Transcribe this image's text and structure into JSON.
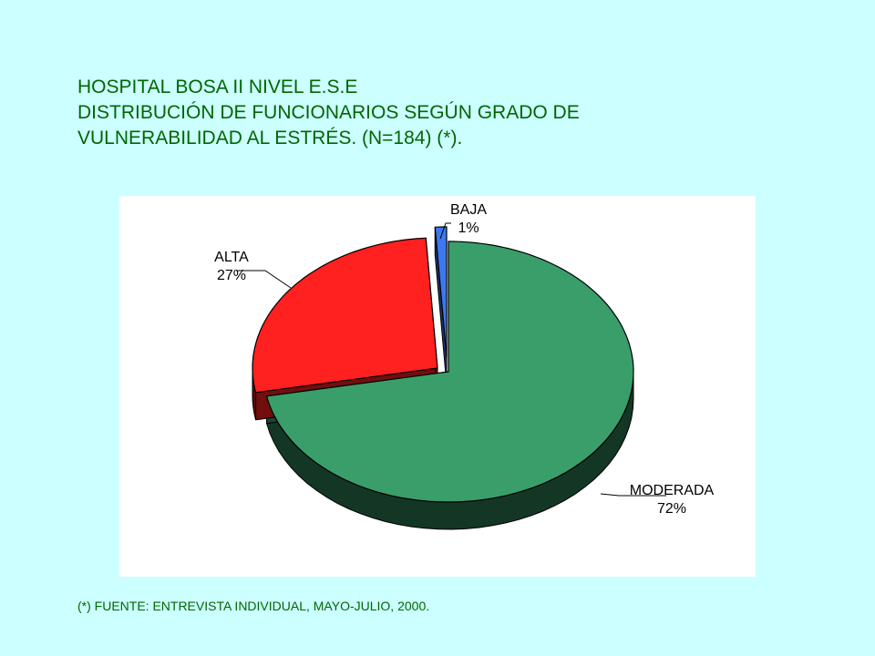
{
  "title": {
    "line1": "HOSPITAL BOSA II NIVEL E.S.E",
    "line2": "DISTRIBUCIÓN DE FUNCIONARIOS SEGÚN GRADO DE",
    "line3": "VULNERABILIDAD AL ESTRÉS.   (N=184) (*)."
  },
  "footnote": "(*) FUENTE: ENTREVISTA INDIVIDUAL, MAYO-JULIO, 2000.",
  "chart_data": {
    "type": "pie",
    "title": "HOSPITAL BOSA II NIVEL E.S.E DISTRIBUCIÓN DE FUNCIONARIOS SEGÚN GRADO DE VULNERABILIDAD AL ESTRÉS. (N=184) (*).",
    "categories": [
      "MODERADA",
      "ALTA",
      "BAJA"
    ],
    "values": [
      72,
      27,
      1
    ],
    "labels": [
      "MODERADA 72%",
      "ALTA 27%",
      "BAJA 1%"
    ],
    "colors": [
      "#3a9e6b",
      "#ff2020",
      "#3c78f0"
    ],
    "legend": "none",
    "exploded": true,
    "three_d": true
  }
}
